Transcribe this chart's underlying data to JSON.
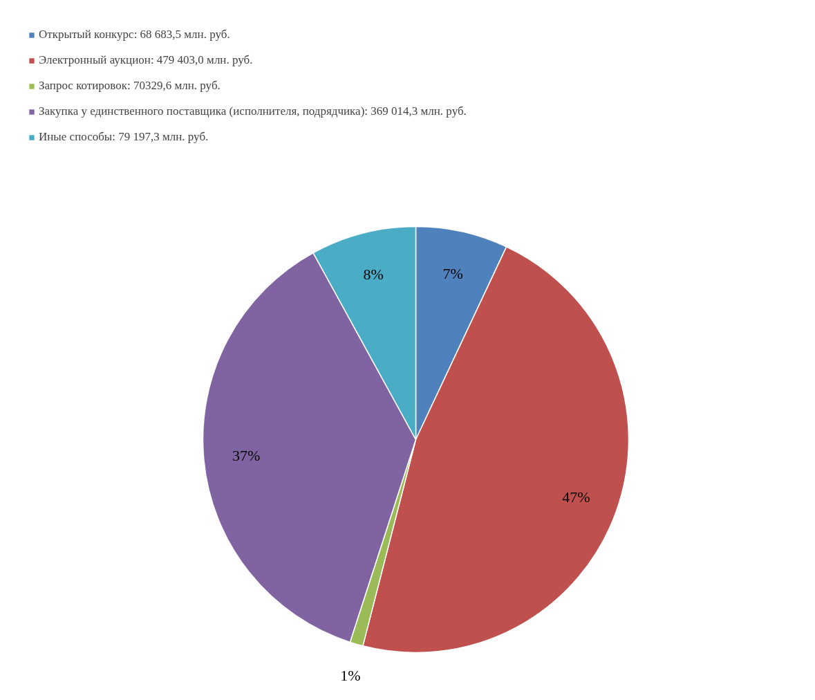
{
  "chart_data": {
    "type": "pie",
    "categories": [
      "Открытый конкурс: 68 683,5 млн. руб.",
      "Электронный аукцион: 479 403,0 млн. руб.",
      "Запрос котировок: 70329,6 млн. руб.",
      "Закупка у единственного поставщика (исполнителя, подрядчика): 369 014,3 млн. руб.",
      "Иные способы: 79 197,3 млн. руб."
    ],
    "values": [
      7,
      47,
      1,
      37,
      8
    ],
    "value_labels": [
      "7%",
      "47%",
      "1%",
      "37%",
      "8%"
    ],
    "colors": [
      "#4f81bd",
      "#c0504d",
      "#9bbb59",
      "#8064a2",
      "#4bacc6"
    ],
    "legend": "top left"
  }
}
